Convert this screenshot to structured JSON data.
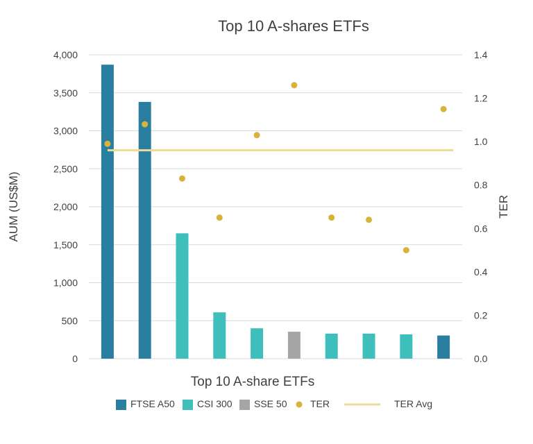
{
  "chart_data": {
    "type": "bar",
    "title": "Top 10 A-shares ETFs",
    "xlabel": "Top 10 A-share ETFs",
    "ylabel": "AUM (US$M)",
    "y2label": "TER",
    "ylim": [
      0,
      4000
    ],
    "y2lim": [
      0,
      1.4
    ],
    "yticks": [
      "0",
      "500",
      "1,000",
      "1,500",
      "2,000",
      "2,500",
      "3,000",
      "3,500",
      "4,000"
    ],
    "y2ticks": [
      "0.0",
      "0.2",
      "0.4",
      "0.6",
      "0.8",
      "1.0",
      "1.2",
      "1.4"
    ],
    "grid": true,
    "bars": [
      {
        "value": 3870,
        "index": "FTSE A50"
      },
      {
        "value": 3380,
        "index": "FTSE A50"
      },
      {
        "value": 1650,
        "index": "CSI 300"
      },
      {
        "value": 610,
        "index": "CSI 300"
      },
      {
        "value": 400,
        "index": "CSI 300"
      },
      {
        "value": 355,
        "index": "SSE 50"
      },
      {
        "value": 330,
        "index": "CSI 300"
      },
      {
        "value": 330,
        "index": "CSI 300"
      },
      {
        "value": 320,
        "index": "CSI 300"
      },
      {
        "value": 305,
        "index": "FTSE A50"
      }
    ],
    "ter": [
      0.99,
      1.08,
      0.83,
      0.65,
      1.03,
      1.26,
      0.65,
      0.64,
      0.5,
      1.15
    ],
    "ter_avg": 0.96,
    "legend": [
      {
        "label": "FTSE A50",
        "kind": "bar",
        "color": "#2a7fa0"
      },
      {
        "label": "CSI 300",
        "kind": "bar",
        "color": "#3fbfbc"
      },
      {
        "label": "SSE 50",
        "kind": "bar",
        "color": "#a6a6a6"
      },
      {
        "label": "TER",
        "kind": "dot",
        "color": "#d9b23a"
      },
      {
        "label": "TER Avg",
        "kind": "line",
        "color": "#ecdb94"
      }
    ],
    "legend_position": "bottom",
    "colors": {
      "FTSE A50": "#2a7fa0",
      "CSI 300": "#3fbfbc",
      "SSE 50": "#a6a6a6",
      "TER": "#d9b23a",
      "TER Avg": "#ecdb94",
      "grid": "#d9d9d9",
      "text": "#404040"
    }
  }
}
